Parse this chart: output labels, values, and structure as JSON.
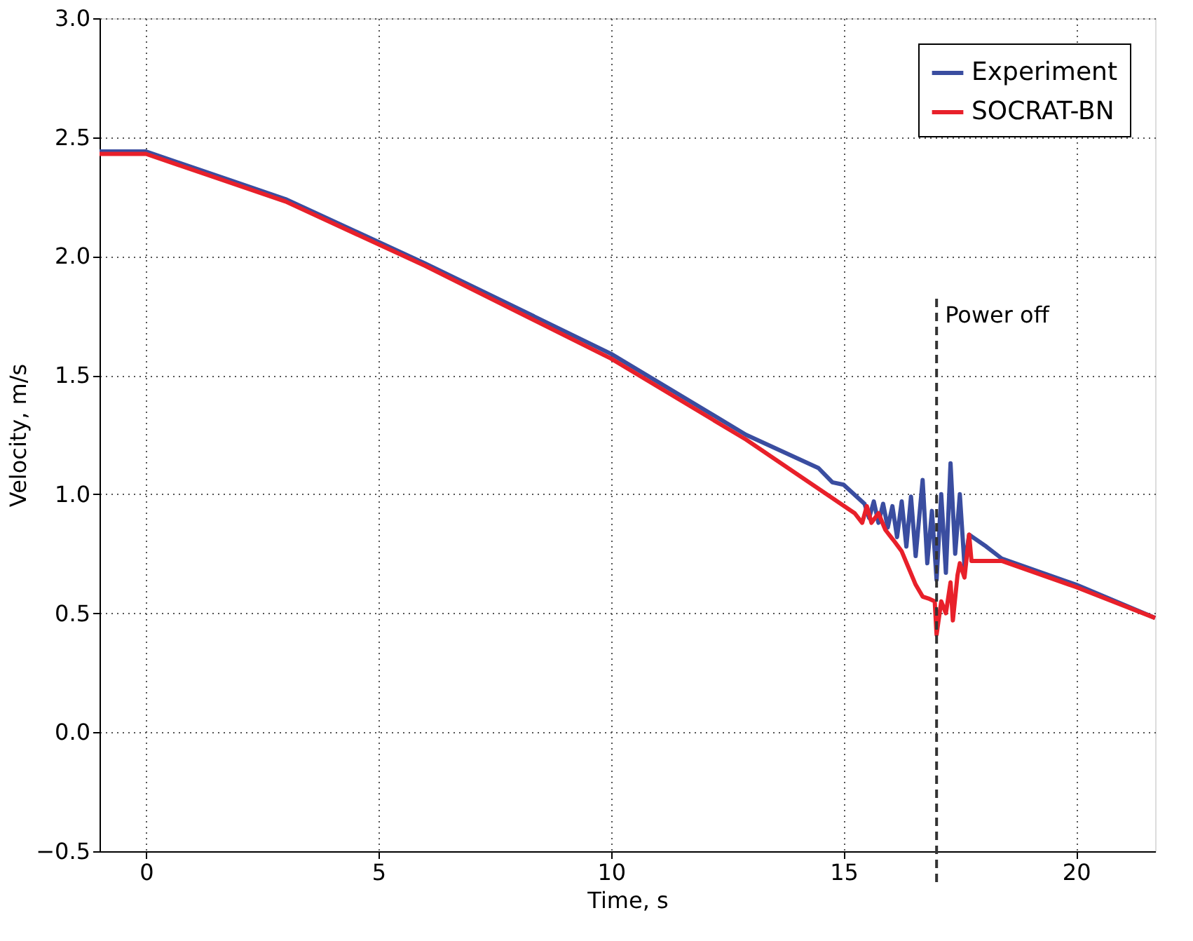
{
  "chart_data": {
    "type": "line",
    "xlabel": "Time, s",
    "ylabel": "Velocity, m/s",
    "xlim": [
      -1,
      21.7
    ],
    "xticks": [
      0,
      5,
      10,
      15,
      20
    ],
    "ylim": [
      -0.5,
      3.0
    ],
    "yticks": [
      {
        "value": -0.5,
        "label": "−0.5"
      },
      {
        "value": 0,
        "label": "0.0"
      },
      {
        "value": 0.5,
        "label": "0.5"
      },
      {
        "value": 1,
        "label": "1.0"
      },
      {
        "value": 1.5,
        "label": "1.5"
      },
      {
        "value": 2,
        "label": "2.0"
      },
      {
        "value": 2.5,
        "label": "2.5"
      },
      {
        "value": 3,
        "label": "3.0"
      }
    ],
    "grid": true,
    "legend": "top right",
    "line_style": "solid",
    "marker": "none",
    "ref_lines": [
      {
        "axis": "x",
        "value": 17,
        "label": "Power off",
        "color": "#333333",
        "line_style": "dashed"
      }
    ],
    "series": [
      {
        "name": "Experiment",
        "color": "#3a4da0",
        "x": [
          -1,
          0,
          3,
          6,
          10,
          12.9,
          14.46,
          14.76,
          15.0,
          15.45,
          15.55,
          15.65,
          15.75,
          15.85,
          15.95,
          16.05,
          16.15,
          16.25,
          16.35,
          16.45,
          16.55,
          16.7,
          16.8,
          16.9,
          17.0,
          17.1,
          17.2,
          17.3,
          17.4,
          17.5,
          17.6,
          17.7,
          18.07,
          18.4,
          20,
          21.7
        ],
        "values": [
          2.44,
          2.44,
          2.24,
          1.97,
          1.59,
          1.25,
          1.11,
          1.05,
          1.04,
          0.96,
          0.9,
          0.97,
          0.88,
          0.96,
          0.86,
          0.95,
          0.82,
          0.97,
          0.78,
          0.99,
          0.74,
          1.06,
          0.71,
          0.93,
          0.64,
          1.0,
          0.67,
          1.13,
          0.75,
          1.0,
          0.7,
          0.83,
          0.78,
          0.73,
          0.62,
          0.48
        ]
      },
      {
        "name": "SOCRAT-BN",
        "color": "#e8202a",
        "x": [
          -1,
          0,
          3,
          6,
          10,
          12.9,
          15.24,
          15.4,
          15.5,
          15.6,
          15.75,
          15.9,
          16.1,
          16.25,
          16.4,
          16.55,
          16.7,
          16.85,
          16.96,
          17.0,
          17.1,
          17.2,
          17.3,
          17.35,
          17.45,
          17.5,
          17.6,
          17.7,
          17.75,
          18.1,
          18.4,
          20,
          21.7
        ],
        "values": [
          2.43,
          2.43,
          2.23,
          1.96,
          1.57,
          1.23,
          0.92,
          0.88,
          0.95,
          0.88,
          0.92,
          0.85,
          0.8,
          0.76,
          0.69,
          0.62,
          0.57,
          0.56,
          0.55,
          0.41,
          0.55,
          0.5,
          0.63,
          0.47,
          0.66,
          0.71,
          0.65,
          0.83,
          0.72,
          0.72,
          0.72,
          0.61,
          0.48
        ]
      }
    ]
  }
}
